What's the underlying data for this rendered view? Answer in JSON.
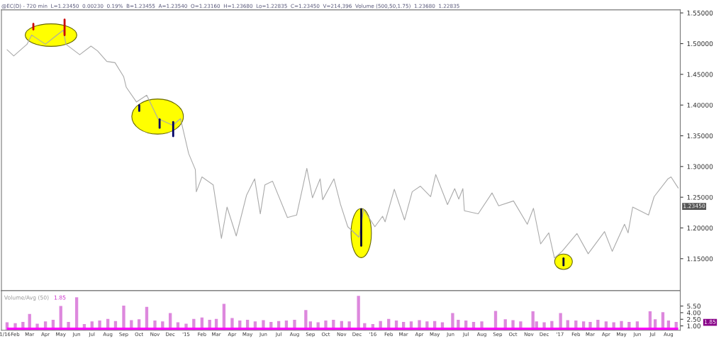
{
  "chart_data": [
    {
      "type": "line",
      "title": "@EC(D) - 720 min  L=1.23450  0.00230  0.19%  B=1.23455  A=1.23540  O=1.23160  H=1.23680  Lo=1.22835  C=1.23450  V=214,396  Volume (500,50,1.75)  1.23680  1.22835",
      "x": [
        "2014-01-16",
        "2014-01-29",
        "2014-02-24",
        "2014-03-05",
        "2014-04-01",
        "2014-04-19",
        "2014-05-06",
        "2014-05-11",
        "2014-06-07",
        "2014-06-29",
        "2014-07-12",
        "2014-07-30",
        "2014-08-15",
        "2014-09-01",
        "2014-09-06",
        "2014-09-26",
        "2014-10-16",
        "2014-11-07",
        "2014-12-06",
        "2014-12-21",
        "2015-01-06",
        "2015-01-19",
        "2015-01-21",
        "2015-02-01",
        "2015-02-23",
        "2015-03-11",
        "2015-03-22",
        "2015-04-09",
        "2015-04-29",
        "2015-05-15",
        "2015-05-26",
        "2015-06-04",
        "2015-06-19",
        "2015-07-18",
        "2015-08-05",
        "2015-08-25",
        "2015-09-05",
        "2015-09-20",
        "2015-09-25",
        "2015-10-17",
        "2015-10-30",
        "2015-11-13",
        "2015-12-05",
        "2015-12-14",
        "2016-01-05",
        "2016-01-20",
        "2016-01-25",
        "2016-02-12",
        "2016-03-03",
        "2016-03-18",
        "2016-04-03",
        "2016-04-23",
        "2016-05-03",
        "2016-05-26",
        "2016-06-09",
        "2016-06-17",
        "2016-06-25",
        "2016-06-28",
        "2016-07-25",
        "2016-08-21",
        "2016-09-03",
        "2016-10-02",
        "2016-10-29",
        "2016-11-10",
        "2016-11-24",
        "2016-12-10",
        "2016-12-21",
        "2017-01-05",
        "2017-02-03",
        "2017-02-25",
        "2017-03-29",
        "2017-04-13",
        "2017-05-07",
        "2017-05-14",
        "2017-05-23",
        "2017-06-23",
        "2017-07-04",
        "2017-07-31",
        "2017-08-06",
        "2017-08-20"
      ],
      "series": [
        {
          "color": "#aaaaaa",
          "values": [
            1.49,
            1.48,
            1.499,
            1.514,
            1.499,
            1.511,
            1.522,
            1.499,
            1.482,
            1.496,
            1.488,
            1.471,
            1.469,
            1.446,
            1.429,
            1.405,
            1.416,
            1.378,
            1.367,
            1.378,
            1.321,
            1.295,
            1.259,
            1.283,
            1.27,
            1.183,
            1.234,
            1.187,
            1.253,
            1.28,
            1.223,
            1.27,
            1.276,
            1.217,
            1.221,
            1.297,
            1.249,
            1.28,
            1.246,
            1.28,
            1.238,
            1.202,
            1.185,
            1.23,
            1.202,
            1.219,
            1.21,
            1.263,
            1.213,
            1.259,
            1.268,
            1.251,
            1.287,
            1.238,
            1.264,
            1.247,
            1.264,
            1.228,
            1.223,
            1.257,
            1.236,
            1.244,
            1.206,
            1.232,
            1.174,
            1.192,
            1.151,
            1.162,
            1.191,
            1.158,
            1.194,
            1.162,
            1.206,
            1.192,
            1.234,
            1.221,
            1.251,
            1.28,
            1.283,
            1.265
          ]
        }
      ],
      "xlim": [
        "2014-01-05",
        "2017-08-24"
      ],
      "ylim": [
        1.098,
        1.555
      ],
      "yticks": [
        {
          "value": 1.15,
          "label": "1.15000"
        },
        {
          "value": 1.2,
          "label": "1.20000"
        },
        {
          "value": 1.25,
          "label": "1.25000"
        },
        {
          "value": 1.3,
          "label": "1.30000"
        },
        {
          "value": 1.35,
          "label": "1.35000"
        },
        {
          "value": 1.4,
          "label": "1.40000"
        },
        {
          "value": 1.45,
          "label": "1.45000"
        },
        {
          "value": 1.5,
          "label": "1.50000"
        },
        {
          "value": 1.55,
          "label": "1.55000"
        }
      ],
      "tick_labels": "y",
      "annotations": [
        "1.23450"
      ]
    },
    {
      "type": "bar",
      "series": [
        {
          "type": "bar",
          "color": "#dd88dd",
          "x": [
            "2014-01-16",
            "2014-02-01",
            "2014-02-16",
            "2014-03-01",
            "2014-03-16",
            "2014-04-01",
            "2014-04-16",
            "2014-05-01",
            "2014-05-16",
            "2014-06-01",
            "2014-06-16",
            "2014-07-01",
            "2014-07-16",
            "2014-08-01",
            "2014-08-16",
            "2014-09-01",
            "2014-09-16",
            "2014-10-01",
            "2014-10-16",
            "2014-11-01",
            "2014-11-16",
            "2014-12-01",
            "2014-12-16",
            "2015-01-01",
            "2015-01-16",
            "2015-02-01",
            "2015-02-16",
            "2015-03-01",
            "2015-03-16",
            "2015-04-01",
            "2015-04-16",
            "2015-05-01",
            "2015-05-16",
            "2015-06-01",
            "2015-06-16",
            "2015-07-01",
            "2015-07-16",
            "2015-08-01",
            "2015-08-23",
            "2015-09-01",
            "2015-09-16",
            "2015-10-01",
            "2015-10-16",
            "2015-11-01",
            "2015-11-16",
            "2015-12-04",
            "2015-12-16",
            "2016-01-01",
            "2016-01-16",
            "2016-02-01",
            "2016-02-16",
            "2016-03-01",
            "2016-03-16",
            "2016-04-01",
            "2016-04-16",
            "2016-05-01",
            "2016-05-16",
            "2016-06-05",
            "2016-06-16",
            "2016-07-01",
            "2016-07-16",
            "2016-08-01",
            "2016-08-28",
            "2016-09-16",
            "2016-10-01",
            "2016-10-16",
            "2016-11-09",
            "2016-11-16",
            "2016-12-01",
            "2016-12-16",
            "2017-01-02",
            "2017-01-16",
            "2017-02-01",
            "2017-02-16",
            "2017-03-01",
            "2017-03-16",
            "2017-04-01",
            "2017-04-16",
            "2017-05-01",
            "2017-05-16",
            "2017-06-01",
            "2017-06-26",
            "2017-07-06",
            "2017-07-21",
            "2017-08-01",
            "2017-08-16"
          ],
          "values": [
            1.8,
            1.6,
            1.9,
            3.7,
            1.5,
            2.0,
            2.4,
            5.5,
            1.9,
            7.5,
            1.4,
            2.0,
            2.2,
            2.6,
            2.1,
            5.6,
            2.3,
            2.5,
            5.3,
            2.2,
            2.0,
            3.9,
            1.8,
            1.5,
            2.6,
            2.9,
            2.4,
            2.6,
            6.0,
            2.8,
            2.2,
            2.4,
            2.0,
            2.3,
            1.9,
            2.1,
            2.2,
            2.4,
            4.6,
            2.0,
            1.8,
            2.2,
            2.4,
            2.1,
            2.0,
            7.8,
            1.6,
            1.4,
            2.1,
            2.6,
            2.2,
            1.9,
            2.0,
            2.3,
            2.0,
            2.1,
            1.8,
            3.9,
            2.4,
            2.2,
            1.9,
            2.0,
            4.4,
            2.5,
            2.3,
            2.0,
            4.3,
            2.0,
            1.8,
            2.1,
            3.9,
            2.3,
            2.2,
            2.0,
            1.9,
            2.4,
            2.0,
            1.8,
            2.1,
            1.9,
            2.0,
            4.3,
            2.5,
            4.1,
            2.2,
            1.9
          ]
        },
        {
          "type": "area",
          "color": "#ff00ff",
          "x": [
            "2014-01-16",
            "2015-01-01",
            "2016-01-01",
            "2017-01-01",
            "2017-08-20"
          ],
          "values": [
            0.6,
            0.6,
            0.6,
            0.6,
            0.6
          ]
        }
      ],
      "xlim": [
        "2014-01-05",
        "2017-08-24"
      ],
      "ylim": [
        0,
        9
      ],
      "yticks": [
        {
          "value": 1,
          "label": "1.00"
        },
        {
          "value": 2.5,
          "label": "2.50"
        },
        {
          "value": 4,
          "label": "4.00"
        },
        {
          "value": 5.5,
          "label": "5.50"
        }
      ],
      "xticks": [
        {
          "value": "2014-01-12",
          "label": "1/16"
        },
        {
          "value": "2014-02-01",
          "label": "Feb"
        },
        {
          "value": "2014-03-01",
          "label": "Mar"
        },
        {
          "value": "2014-04-01",
          "label": "Apr"
        },
        {
          "value": "2014-05-01",
          "label": "May"
        },
        {
          "value": "2014-06-01",
          "label": "Jun"
        },
        {
          "value": "2014-07-01",
          "label": "Jul"
        },
        {
          "value": "2014-08-01",
          "label": "Aug"
        },
        {
          "value": "2014-09-01",
          "label": "Sep"
        },
        {
          "value": "2014-10-01",
          "label": "Oct"
        },
        {
          "value": "2014-11-01",
          "label": "Nov"
        },
        {
          "value": "2014-12-01",
          "label": "Dec"
        },
        {
          "value": "2015-01-01",
          "label": "'15"
        },
        {
          "value": "2015-02-01",
          "label": "Feb"
        },
        {
          "value": "2015-03-01",
          "label": "Mar"
        },
        {
          "value": "2015-04-01",
          "label": "Apr"
        },
        {
          "value": "2015-05-01",
          "label": "May"
        },
        {
          "value": "2015-06-01",
          "label": "Jun"
        },
        {
          "value": "2015-07-01",
          "label": "Jul"
        },
        {
          "value": "2015-08-01",
          "label": "Aug"
        },
        {
          "value": "2015-09-01",
          "label": "Sep"
        },
        {
          "value": "2015-10-01",
          "label": "Oct"
        },
        {
          "value": "2015-11-01",
          "label": "Nov"
        },
        {
          "value": "2015-12-01",
          "label": "Dec"
        },
        {
          "value": "2016-01-01",
          "label": "'16"
        },
        {
          "value": "2016-02-01",
          "label": "Feb"
        },
        {
          "value": "2016-03-01",
          "label": "Mar"
        },
        {
          "value": "2016-04-01",
          "label": "Apr"
        },
        {
          "value": "2016-05-01",
          "label": "May"
        },
        {
          "value": "2016-06-01",
          "label": "Jun"
        },
        {
          "value": "2016-07-01",
          "label": "Jul"
        },
        {
          "value": "2016-08-01",
          "label": "Aug"
        },
        {
          "value": "2016-09-01",
          "label": "Sep"
        },
        {
          "value": "2016-10-01",
          "label": "Oct"
        },
        {
          "value": "2016-11-01",
          "label": "Nov"
        },
        {
          "value": "2016-12-01",
          "label": "Dec"
        },
        {
          "value": "2017-01-01",
          "label": "'17"
        },
        {
          "value": "2017-02-01",
          "label": "Feb"
        },
        {
          "value": "2017-03-01",
          "label": "Mar"
        },
        {
          "value": "2017-04-01",
          "label": "Apr"
        },
        {
          "value": "2017-05-01",
          "label": "May"
        },
        {
          "value": "2017-06-01",
          "label": "Jun"
        },
        {
          "value": "2017-07-01",
          "label": "Jul"
        },
        {
          "value": "2017-08-01",
          "label": "Aug"
        }
      ],
      "annotations": [
        "Volume/Avg (50)",
        "1.85",
        "1.85"
      ]
    }
  ]
}
